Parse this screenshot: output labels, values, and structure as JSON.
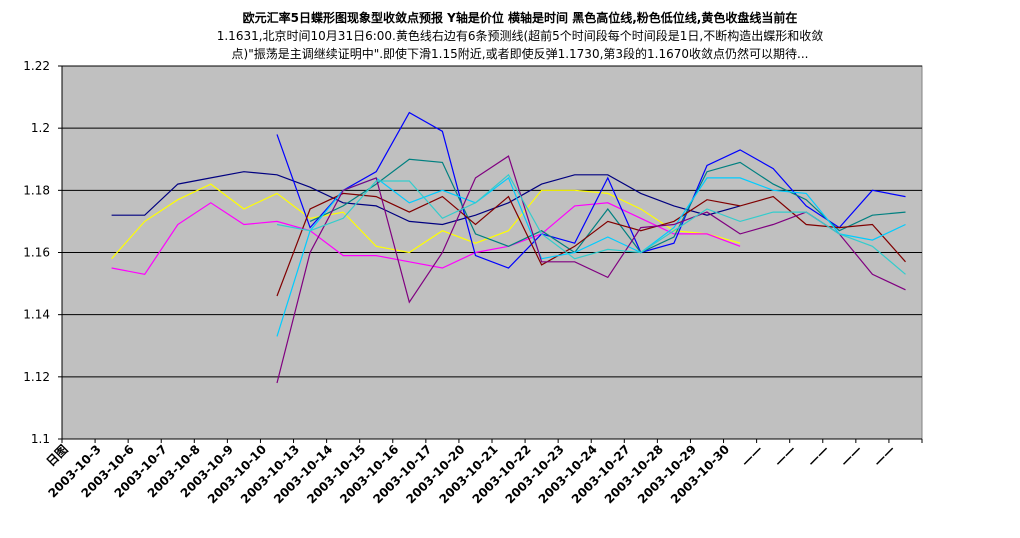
{
  "chart_data": {
    "type": "line",
    "title_lines": [
      "欧元汇率5日蝶形图现象型收敛点预报 Y轴是价位 横轴是时间 黑色高位线,粉色低位线,黄色收盘线当前在",
      "1.1631,北京时间10月31日6:00.黄色线右边有6条预测线(超前5个时间段每个时间段是1日,不断构造出蝶形和收敛",
      "点)\"振荡是主调继续证明中\".即使下滑1.15附近,或者即使反弹1.1730,第3段的1.1670收敛点仍然可以期待..."
    ],
    "categories": [
      "日图",
      "2003-10-3",
      "2003-10-6",
      "2003-10-7",
      "2003-10-8",
      "2003-10-9",
      "2003-10-10",
      "2003-10-13",
      "2003-10-14",
      "2003-10-15",
      "2003-10-16",
      "2003-10-17",
      "2003-10-20",
      "2003-10-21",
      "2003-10-22",
      "2003-10-23",
      "2003-10-24",
      "2003-10-27",
      "2003-10-28",
      "2003-10-29",
      "2003-10-30",
      "——",
      "——",
      "——",
      "——",
      "——"
    ],
    "series": [
      {
        "color": "#000080",
        "values": [
          null,
          1.172,
          1.172,
          1.182,
          1.184,
          1.186,
          1.185,
          1.181,
          1.176,
          1.175,
          1.17,
          1.169,
          1.172,
          1.176,
          1.182,
          1.185,
          1.185,
          1.179,
          1.175,
          1.172,
          1.175,
          null,
          null,
          null,
          null,
          null
        ]
      },
      {
        "color": "#ffff00",
        "values": [
          null,
          1.158,
          1.17,
          1.177,
          1.182,
          1.174,
          1.179,
          1.171,
          1.173,
          1.162,
          1.16,
          1.167,
          1.163,
          1.167,
          1.18,
          1.18,
          1.179,
          1.174,
          1.167,
          1.166,
          1.163,
          null,
          null,
          null,
          null,
          null
        ]
      },
      {
        "color": "#ff00ff",
        "values": [
          null,
          1.155,
          1.153,
          1.169,
          1.176,
          1.169,
          1.17,
          1.167,
          1.159,
          1.159,
          1.157,
          1.155,
          1.16,
          1.162,
          1.166,
          1.175,
          1.176,
          1.171,
          1.166,
          1.166,
          1.162,
          null,
          null,
          null,
          null,
          null
        ]
      },
      {
        "color": "#0000ff",
        "values": [
          null,
          null,
          null,
          null,
          null,
          null,
          1.198,
          1.168,
          1.18,
          1.186,
          1.205,
          1.199,
          1.159,
          1.155,
          1.166,
          1.163,
          1.184,
          1.16,
          1.163,
          1.188,
          1.193,
          1.187,
          1.175,
          1.168,
          1.18,
          1.178
        ]
      },
      {
        "color": "#008080",
        "values": [
          null,
          null,
          null,
          null,
          null,
          null,
          null,
          1.17,
          1.175,
          1.182,
          1.19,
          1.189,
          1.166,
          1.162,
          1.167,
          1.16,
          1.174,
          1.16,
          1.165,
          1.186,
          1.189,
          1.182,
          1.177,
          1.167,
          1.172,
          1.173
        ]
      },
      {
        "color": "#800000",
        "values": [
          null,
          null,
          null,
          null,
          null,
          null,
          1.146,
          1.174,
          1.179,
          1.178,
          1.173,
          1.178,
          1.169,
          1.178,
          1.156,
          1.162,
          1.17,
          1.167,
          1.17,
          1.177,
          1.175,
          1.178,
          1.169,
          1.168,
          1.169,
          1.157
        ]
      },
      {
        "color": "#00ccff",
        "values": [
          null,
          null,
          null,
          null,
          null,
          null,
          1.133,
          1.167,
          1.18,
          1.184,
          1.176,
          1.18,
          1.176,
          1.184,
          1.158,
          1.16,
          1.165,
          1.16,
          1.168,
          1.184,
          1.184,
          1.18,
          1.179,
          1.166,
          1.164,
          1.169
        ]
      },
      {
        "color": "#800080",
        "values": [
          null,
          null,
          null,
          null,
          null,
          null,
          1.118,
          1.16,
          1.18,
          1.184,
          1.144,
          1.16,
          1.184,
          1.191,
          1.157,
          1.157,
          1.152,
          1.168,
          1.169,
          1.173,
          1.166,
          1.169,
          1.173,
          1.166,
          1.153,
          1.148
        ]
      },
      {
        "color": "#33cccc",
        "values": [
          null,
          null,
          null,
          null,
          null,
          null,
          1.169,
          1.167,
          1.171,
          1.183,
          1.183,
          1.171,
          1.176,
          1.185,
          1.166,
          1.158,
          1.161,
          1.16,
          1.167,
          1.174,
          1.17,
          1.173,
          1.173,
          1.166,
          1.162,
          1.153
        ]
      }
    ],
    "ylim": [
      1.1,
      1.22
    ],
    "yticks": [
      1.1,
      1.12,
      1.14,
      1.16,
      1.18,
      1.2,
      1.22
    ],
    "grid": true,
    "plot_background": "#c0c0c0"
  }
}
